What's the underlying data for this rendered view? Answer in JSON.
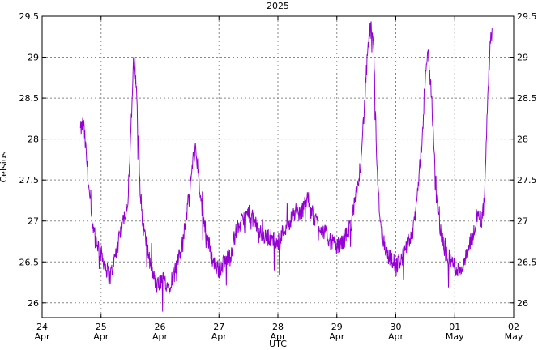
{
  "chart_data": {
    "type": "line",
    "title": "2025",
    "xlabel": "UTC",
    "ylabel": "Celsius",
    "ylim": [
      25.82,
      29.5
    ],
    "yticks": [
      26,
      26.5,
      27,
      27.5,
      28,
      28.5,
      29,
      29.5
    ],
    "ytick_labels": [
      "26",
      "26.5",
      "27",
      "27.5",
      "28",
      "28.5",
      "29",
      "29.5"
    ],
    "xlim": [
      "2025-04-24",
      "2025-05-02"
    ],
    "xticks": [
      {
        "day": "24",
        "month": "Apr"
      },
      {
        "day": "25",
        "month": "Apr"
      },
      {
        "day": "26",
        "month": "Apr"
      },
      {
        "day": "27",
        "month": "Apr"
      },
      {
        "day": "28",
        "month": "Apr"
      },
      {
        "day": "29",
        "month": "Apr"
      },
      {
        "day": "30",
        "month": "Apr"
      },
      {
        "day": "01",
        "month": "May"
      },
      {
        "day": "02",
        "month": "May"
      }
    ],
    "grid": true,
    "series": [
      {
        "color": "#9400d3",
        "x": [
          "2025-04-24 15:36",
          "2025-04-24 16:48",
          "2025-04-24 18:00",
          "2025-04-24 20:24",
          "2025-04-24 22:48",
          "2025-04-25 01:12",
          "2025-04-25 03:36",
          "2025-04-25 06:00",
          "2025-04-25 08:24",
          "2025-04-25 09:36",
          "2025-04-25 10:48",
          "2025-04-25 12:00",
          "2025-04-25 13:12",
          "2025-04-25 14:24",
          "2025-04-25 15:36",
          "2025-04-25 16:48",
          "2025-04-25 18:00",
          "2025-04-25 20:24",
          "2025-04-25 22:48",
          "2025-04-26 01:12",
          "2025-04-26 03:36",
          "2025-04-26 06:00",
          "2025-04-26 08:24",
          "2025-04-26 10:48",
          "2025-04-26 12:00",
          "2025-04-26 13:12",
          "2025-04-26 14:24",
          "2025-04-26 15:36",
          "2025-04-26 16:48",
          "2025-04-26 19:12",
          "2025-04-26 21:36",
          "2025-04-27 00:00",
          "2025-04-27 02:24",
          "2025-04-27 04:48",
          "2025-04-27 07:12",
          "2025-04-27 09:36",
          "2025-04-27 12:00",
          "2025-04-27 14:24",
          "2025-04-27 16:48",
          "2025-04-27 19:12",
          "2025-04-27 21:36",
          "2025-04-28 00:00",
          "2025-04-28 02:24",
          "2025-04-28 04:48",
          "2025-04-28 07:12",
          "2025-04-28 09:36",
          "2025-04-28 12:00",
          "2025-04-28 13:12",
          "2025-04-28 14:24",
          "2025-04-28 15:36",
          "2025-04-28 18:00",
          "2025-04-28 20:24",
          "2025-04-28 22:48",
          "2025-04-29 01:12",
          "2025-04-29 03:36",
          "2025-04-29 06:00",
          "2025-04-29 08:24",
          "2025-04-29 09:36",
          "2025-04-29 10:48",
          "2025-04-29 12:00",
          "2025-04-29 13:12",
          "2025-04-29 14:24",
          "2025-04-29 15:12",
          "2025-04-29 16:00",
          "2025-04-29 16:48",
          "2025-04-29 18:00",
          "2025-04-29 20:24",
          "2025-04-29 22:48",
          "2025-04-30 01:12",
          "2025-04-30 03:36",
          "2025-04-30 06:00",
          "2025-04-30 07:12",
          "2025-04-30 08:24",
          "2025-04-30 09:36",
          "2025-04-30 10:48",
          "2025-04-30 12:00",
          "2025-04-30 13:12",
          "2025-04-30 14:24",
          "2025-04-30 15:36",
          "2025-04-30 16:48",
          "2025-04-30 18:00",
          "2025-04-30 20:24",
          "2025-04-30 22:48",
          "2025-05-01 01:12",
          "2025-05-01 03:36",
          "2025-05-01 06:00",
          "2025-05-01 07:12",
          "2025-05-01 08:24",
          "2025-05-01 09:36",
          "2025-05-01 10:48",
          "2025-05-01 12:00",
          "2025-05-01 12:48",
          "2025-05-01 13:36",
          "2025-05-01 14:24",
          "2025-05-01 15:12"
        ],
        "values": [
          28.1,
          28.2,
          27.8,
          26.9,
          26.7,
          26.5,
          26.3,
          26.6,
          26.9,
          27.1,
          27.2,
          28.0,
          28.9,
          28.6,
          27.6,
          27.0,
          26.8,
          26.4,
          26.2,
          26.3,
          26.2,
          26.4,
          26.6,
          27.1,
          27.3,
          27.7,
          27.9,
          27.6,
          27.2,
          26.8,
          26.5,
          26.4,
          26.5,
          26.6,
          26.9,
          27.0,
          27.1,
          27.0,
          26.85,
          26.8,
          26.8,
          26.7,
          26.9,
          27.0,
          27.1,
          27.1,
          27.3,
          27.15,
          27.05,
          27.0,
          26.9,
          26.8,
          26.7,
          26.7,
          26.8,
          27.0,
          27.4,
          27.7,
          28.2,
          28.8,
          29.3,
          29.35,
          28.9,
          28.0,
          27.4,
          26.9,
          26.6,
          26.5,
          26.5,
          26.6,
          26.8,
          26.9,
          27.2,
          27.6,
          28.0,
          28.8,
          29.0,
          28.6,
          27.9,
          27.2,
          26.9,
          26.6,
          26.5,
          26.4,
          26.45,
          26.7,
          26.8,
          26.9,
          27.1,
          27.0,
          27.2,
          27.9,
          28.6,
          29.1,
          29.35
        ]
      }
    ]
  }
}
